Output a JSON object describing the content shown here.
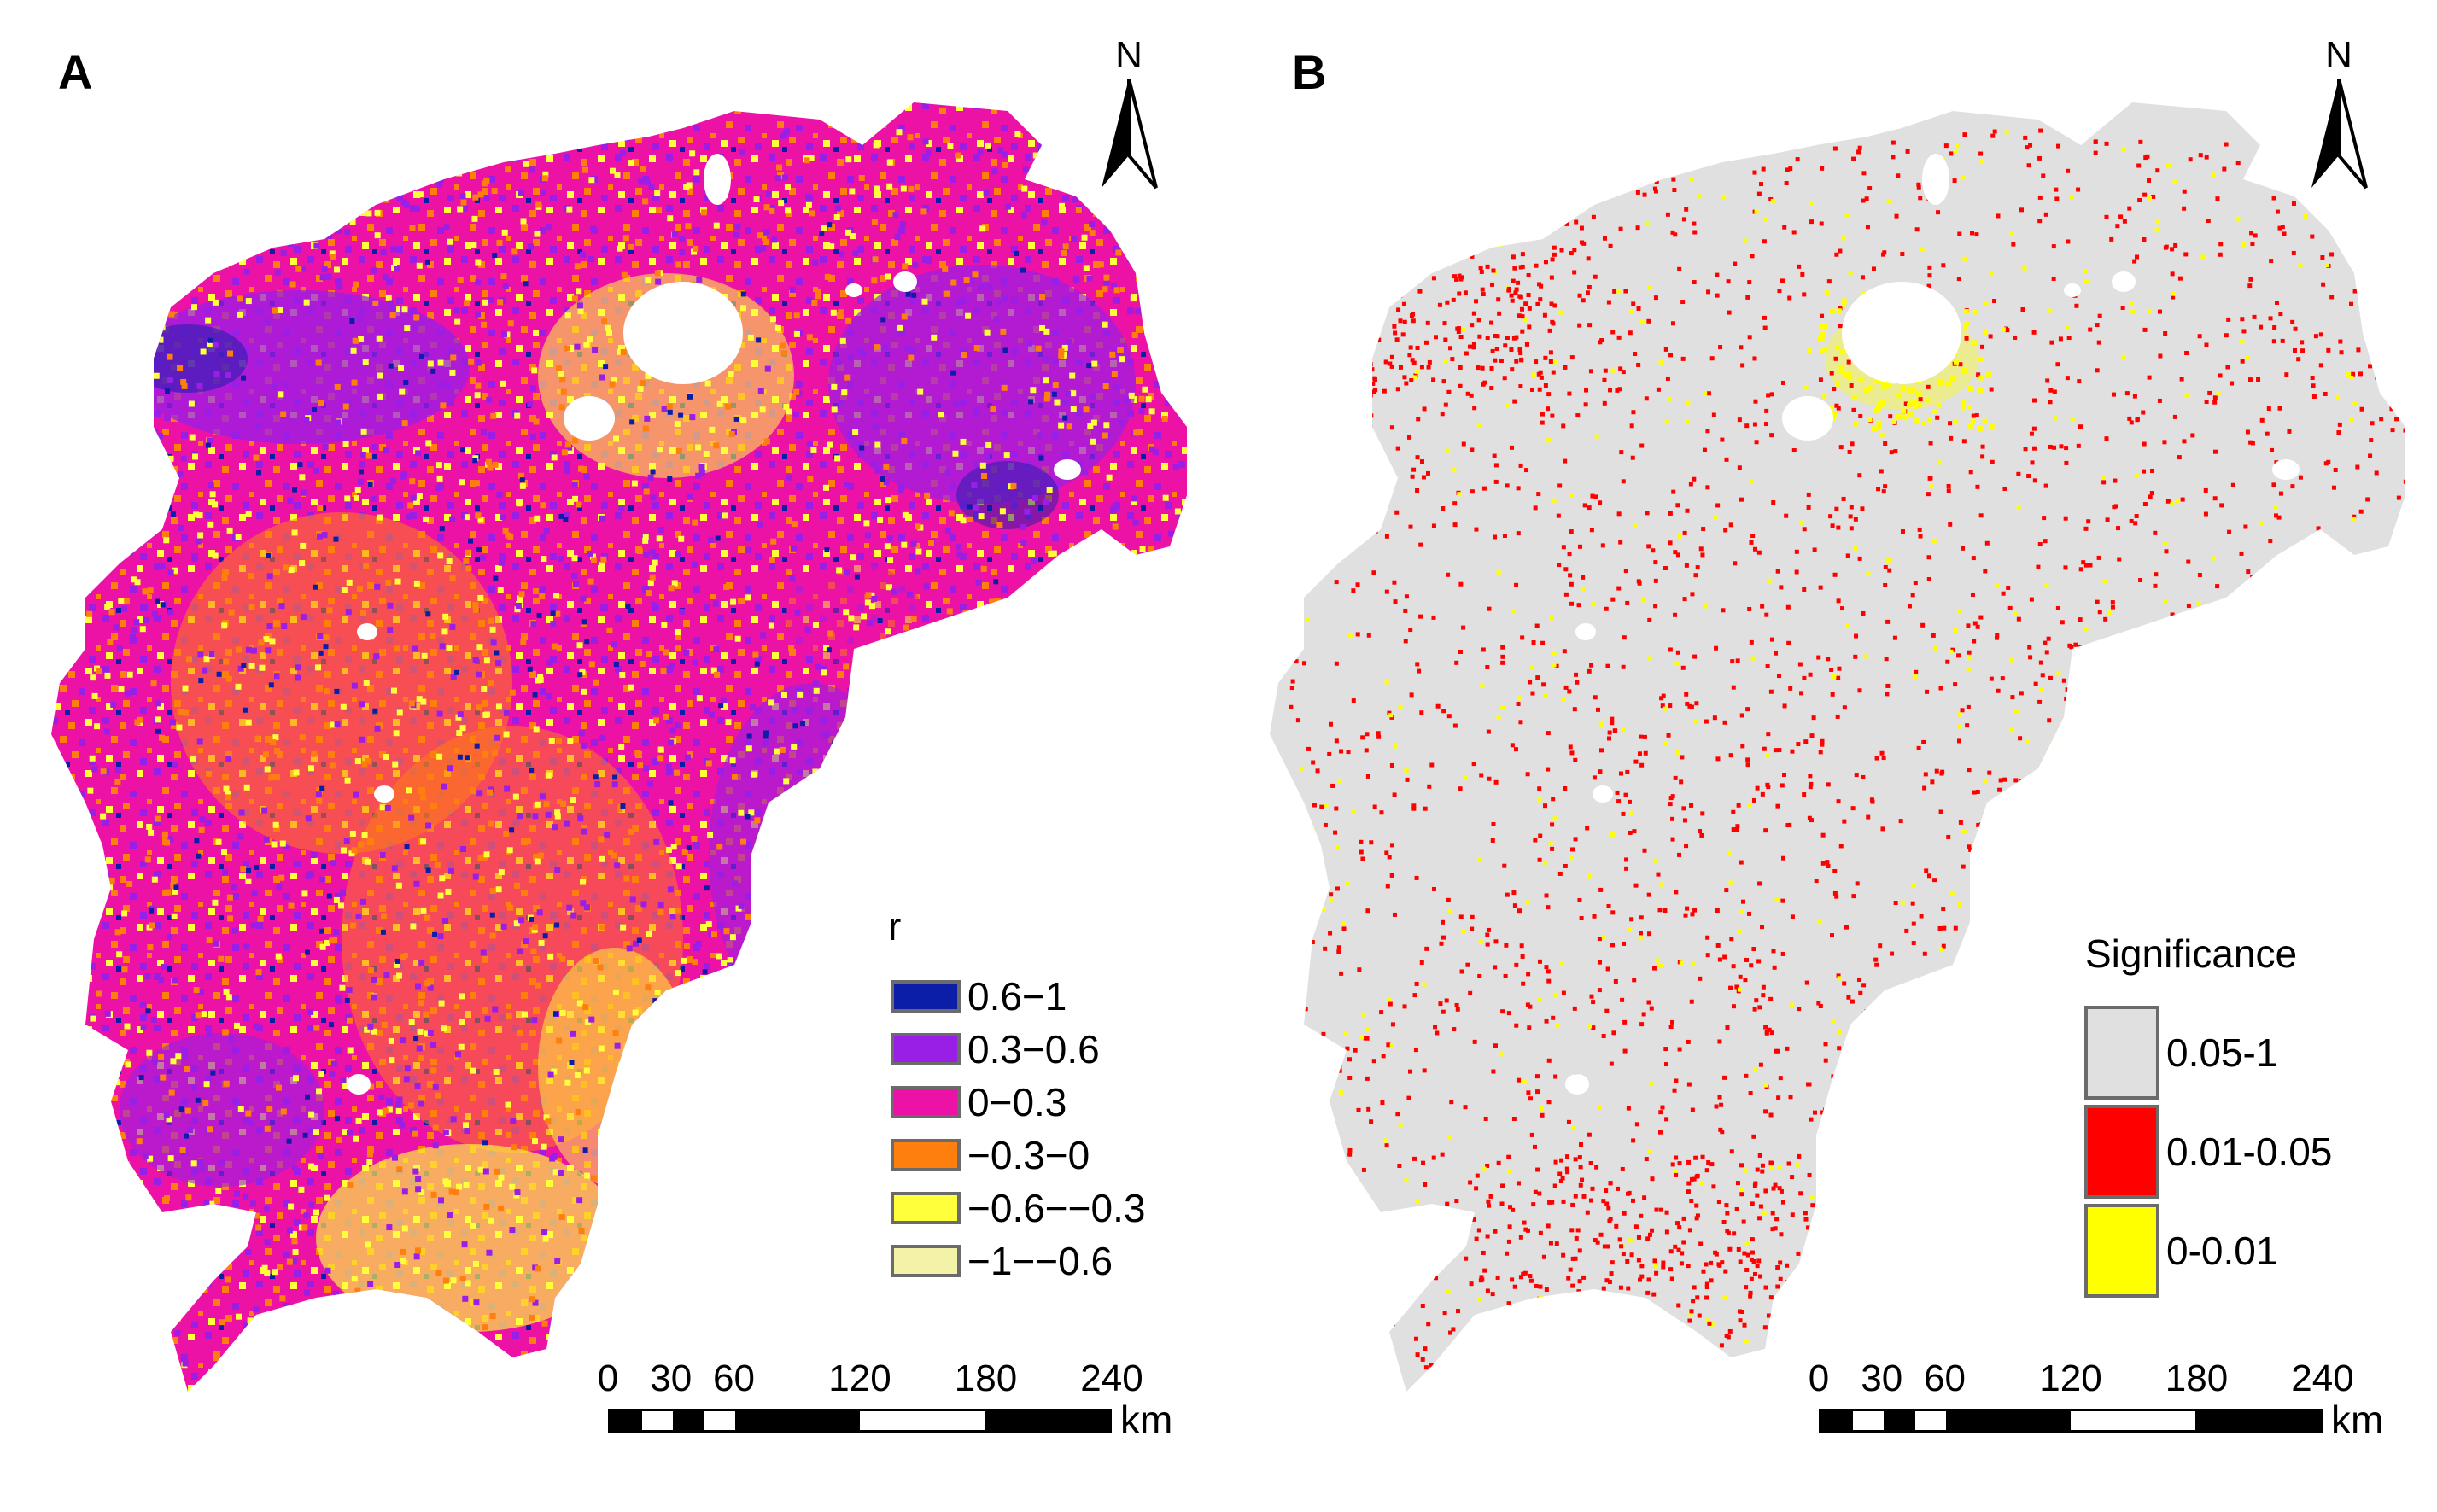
{
  "panel_a": {
    "label": "A",
    "north_label": "N",
    "legend": {
      "title": "r",
      "items": [
        {
          "label": "0.6−1",
          "color": "#0b1ea8"
        },
        {
          "label": "0.3−0.6",
          "color": "#9a1fe6"
        },
        {
          "label": "0−0.3",
          "color": "#ec12a6"
        },
        {
          "label": "−0.3−0",
          "color": "#ff7f0e"
        },
        {
          "label": "−0.6−−0.3",
          "color": "#ffff3c"
        },
        {
          "label": "−1−−0.6",
          "color": "#f4f1a8"
        }
      ]
    },
    "scale": {
      "ticks": [
        "0",
        "30",
        "60",
        "120",
        "180",
        "240"
      ],
      "unit": "km"
    }
  },
  "panel_b": {
    "label": "B",
    "north_label": "N",
    "legend": {
      "title": "Significance",
      "items": [
        {
          "label": "0.05-1",
          "color": "#e0e0e0"
        },
        {
          "label": "0.01-0.05",
          "color": "#ff0000"
        },
        {
          "label": "0-0.01",
          "color": "#ffff00"
        }
      ]
    },
    "scale": {
      "ticks": [
        "0",
        "30",
        "60",
        "120",
        "180",
        "240"
      ],
      "unit": "km"
    }
  }
}
